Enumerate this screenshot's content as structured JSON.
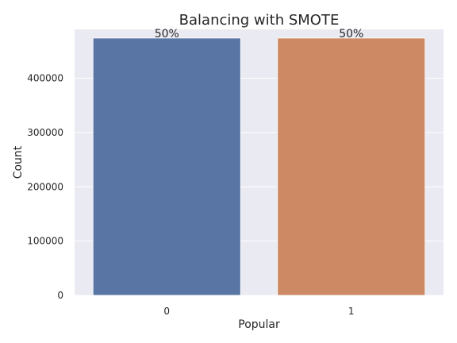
{
  "figure": {
    "title": "Balancing with SMOTE"
  },
  "chart_data": {
    "type": "bar",
    "title": "Balancing with SMOTE",
    "xlabel": "Popular",
    "ylabel": "Count",
    "categories": [
      "0",
      "1"
    ],
    "values": [
      474000,
      474000
    ],
    "data_labels": [
      "50%",
      "50%"
    ],
    "ylim": [
      0,
      490000
    ],
    "y_ticks": [
      0,
      100000,
      200000,
      300000,
      400000
    ],
    "y_tick_labels": [
      "0",
      "100000",
      "200000",
      "300000",
      "400000"
    ],
    "grid": true,
    "legend": "none",
    "colors": {
      "plot_bg": "#eaeaf2",
      "grid": "#ffffff",
      "text": "#262626",
      "bars": [
        "#5975a4",
        "#cc8963"
      ]
    }
  }
}
